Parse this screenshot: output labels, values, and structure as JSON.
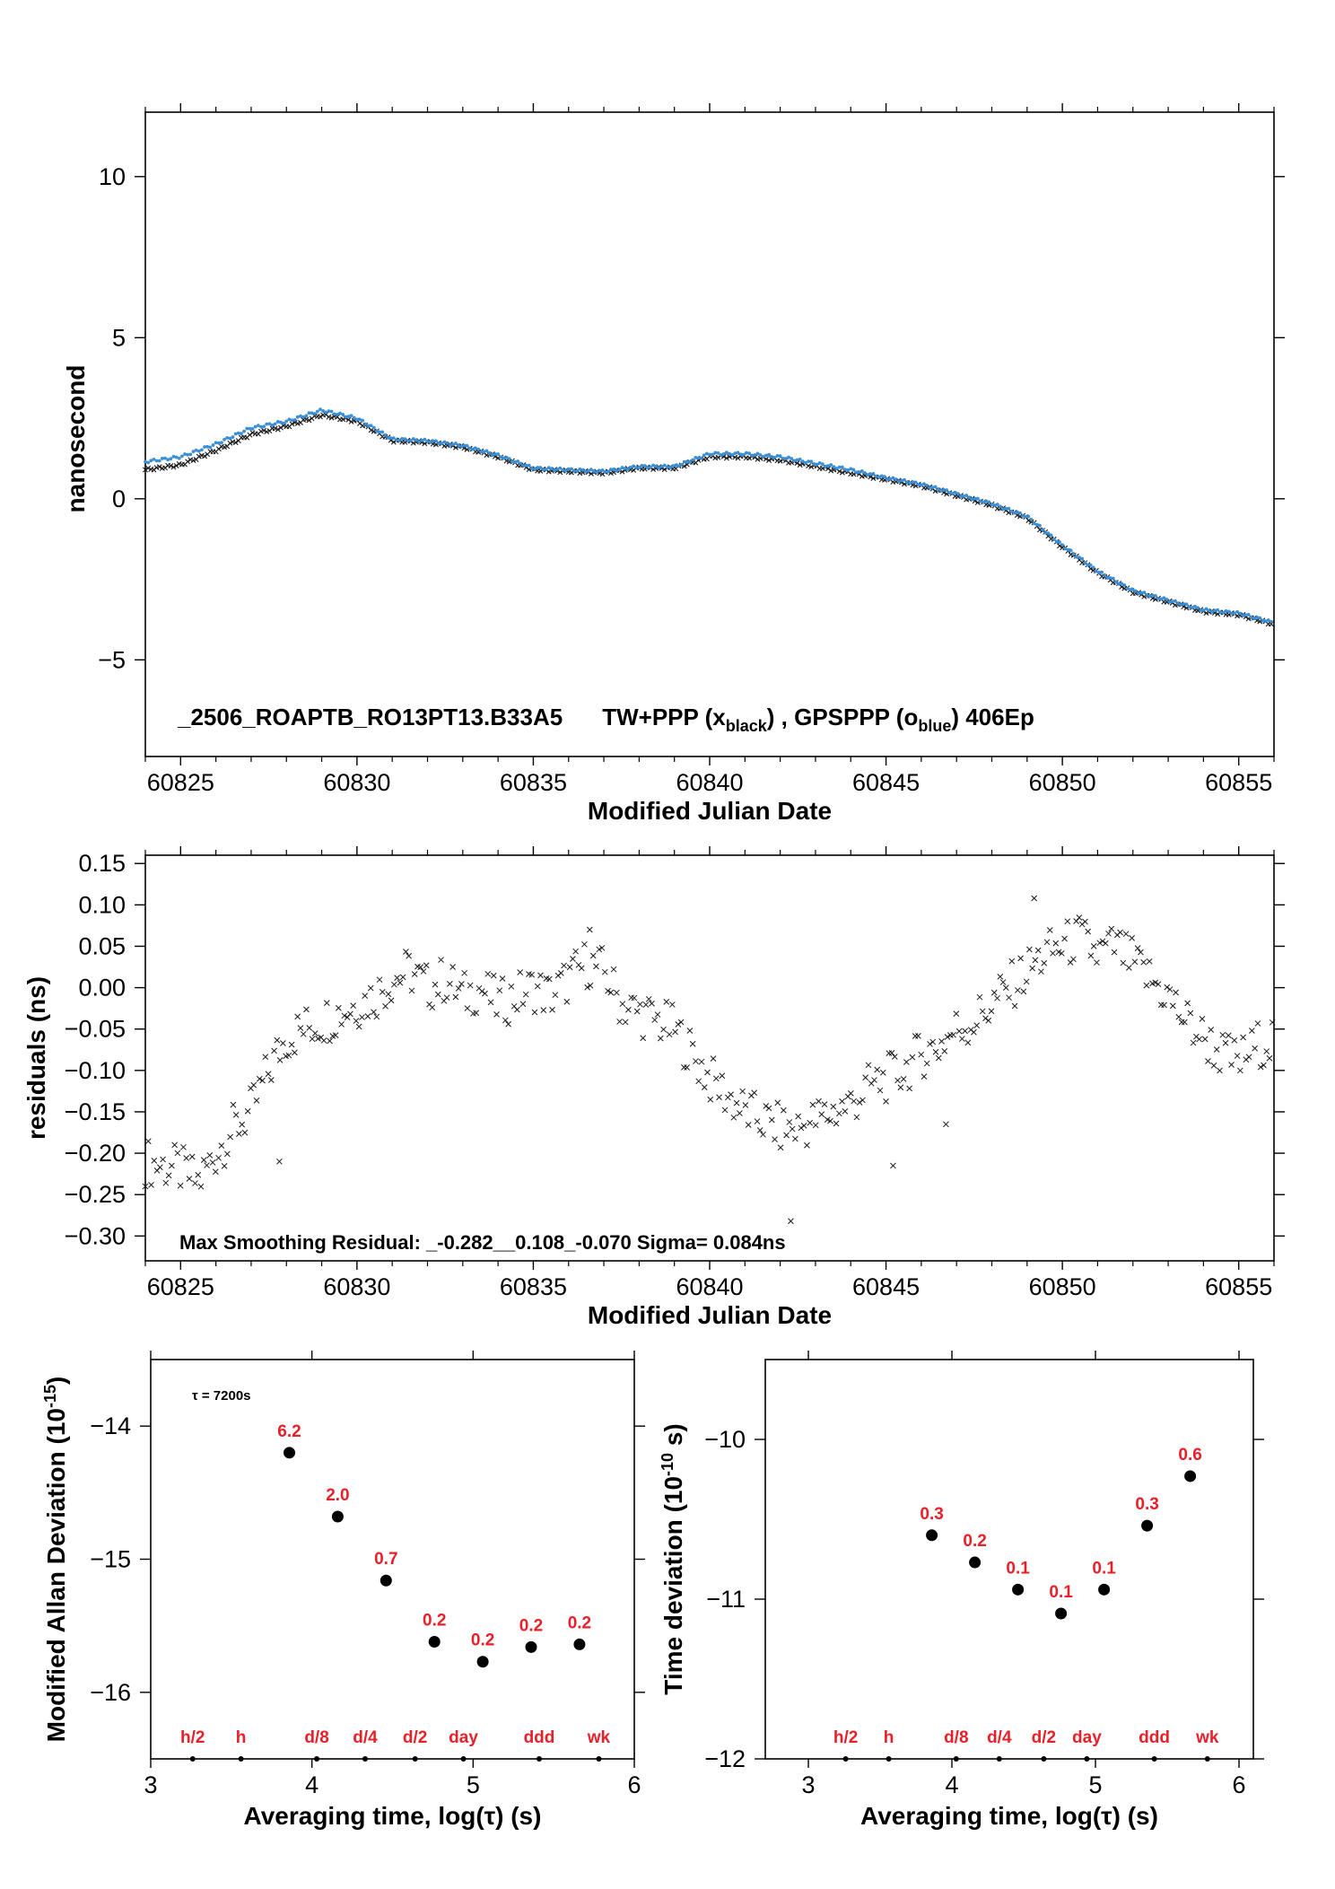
{
  "colors": {
    "black_series": "#1a1a1a",
    "blue_series": "#3a8fd6",
    "label_red": "#e8202a"
  },
  "chart_data": [
    {
      "type": "scatter",
      "ylabel": "nanosecond",
      "xlabel": "Modified Julian Date",
      "xlim": [
        60824,
        60856
      ],
      "ylim": [
        -8,
        12
      ],
      "xticks": [
        60825,
        60830,
        60835,
        60840,
        60845,
        60850,
        60855
      ],
      "yticks": [
        -5,
        0,
        5,
        10
      ],
      "ytick_labels": [
        "−5",
        "0",
        "5",
        "10"
      ],
      "note_parts": [
        "_2506_ROAPTB_RO13PT13.B33A5",
        "TW+PPP (x",
        "black",
        ") ,  GPSPPP (o",
        "blue",
        ")  406Ep"
      ],
      "series": [
        {
          "name": "TW+PPP (x black)",
          "marker": "x",
          "color": "#1a1a1a",
          "points": [
            [
              60824,
              0.9
            ],
            [
              60825,
              1.05
            ],
            [
              60826,
              1.5
            ],
            [
              60827,
              2.0
            ],
            [
              60828,
              2.25
            ],
            [
              60829,
              2.6
            ],
            [
              60830,
              2.4
            ],
            [
              60831,
              1.8
            ],
            [
              60832,
              1.75
            ],
            [
              60833,
              1.6
            ],
            [
              60834,
              1.3
            ],
            [
              60835,
              0.9
            ],
            [
              60836,
              0.85
            ],
            [
              60837,
              0.8
            ],
            [
              60838,
              0.95
            ],
            [
              60839,
              0.95
            ],
            [
              60840,
              1.3
            ],
            [
              60841,
              1.3
            ],
            [
              60842,
              1.2
            ],
            [
              60843,
              1.0
            ],
            [
              60844,
              0.8
            ],
            [
              60845,
              0.6
            ],
            [
              60846,
              0.4
            ],
            [
              60847,
              0.1
            ],
            [
              60848,
              -0.2
            ],
            [
              60849,
              -0.6
            ],
            [
              60850,
              -1.5
            ],
            [
              60851,
              -2.3
            ],
            [
              60852,
              -2.9
            ],
            [
              60853,
              -3.2
            ],
            [
              60854,
              -3.5
            ],
            [
              60855,
              -3.6
            ],
            [
              60856,
              -3.9
            ]
          ]
        },
        {
          "name": "GPSPPP (o blue)",
          "marker": "o",
          "color": "#3a8fd6",
          "points": [
            [
              60824,
              1.15
            ],
            [
              60825,
              1.3
            ],
            [
              60826,
              1.7
            ],
            [
              60827,
              2.2
            ],
            [
              60828,
              2.4
            ],
            [
              60829,
              2.75
            ],
            [
              60830,
              2.5
            ],
            [
              60831,
              1.85
            ],
            [
              60832,
              1.8
            ],
            [
              60833,
              1.65
            ],
            [
              60834,
              1.35
            ],
            [
              60835,
              0.95
            ],
            [
              60836,
              0.9
            ],
            [
              60837,
              0.85
            ],
            [
              60838,
              1.0
            ],
            [
              60839,
              1.0
            ],
            [
              60840,
              1.4
            ],
            [
              60841,
              1.4
            ],
            [
              60842,
              1.3
            ],
            [
              60843,
              1.1
            ],
            [
              60844,
              0.9
            ],
            [
              60845,
              0.65
            ],
            [
              60846,
              0.45
            ],
            [
              60847,
              0.15
            ],
            [
              60848,
              -0.15
            ],
            [
              60849,
              -0.55
            ],
            [
              60850,
              -1.45
            ],
            [
              60851,
              -2.25
            ],
            [
              60852,
              -2.85
            ],
            [
              60853,
              -3.15
            ],
            [
              60854,
              -3.45
            ],
            [
              60855,
              -3.55
            ],
            [
              60856,
              -3.85
            ]
          ]
        }
      ]
    },
    {
      "type": "scatter",
      "ylabel": "residuals (ns)",
      "xlabel": "Modified Julian Date",
      "xlim": [
        60824,
        60856
      ],
      "ylim": [
        -0.33,
        0.16
      ],
      "xticks": [
        60825,
        60830,
        60835,
        60840,
        60845,
        60850,
        60855
      ],
      "yticks": [
        -0.3,
        -0.25,
        -0.2,
        -0.15,
        -0.1,
        -0.05,
        0.0,
        0.05,
        0.1,
        0.15
      ],
      "ytick_labels": [
        "−0.30",
        "−0.25",
        "−0.20",
        "−0.15",
        "−0.10",
        "−0.05",
        "0.00",
        "0.05",
        "0.10",
        "0.15"
      ],
      "note": "Max Smoothing Residual: _-0.282__0.108_-0.070  Sigma= 0.084ns",
      "series": [
        {
          "name": "",
          "marker": "x",
          "color": "#1a1a1a",
          "points": [
            [
              60824.0,
              -0.21
            ],
            [
              60824.5,
              -0.215
            ],
            [
              60825.0,
              -0.22
            ],
            [
              60825.5,
              -0.235
            ],
            [
              60826.0,
              -0.2
            ],
            [
              60826.5,
              -0.17
            ],
            [
              60827.0,
              -0.15
            ],
            [
              60827.5,
              -0.1
            ],
            [
              60828.0,
              -0.06
            ],
            [
              60828.5,
              -0.05
            ],
            [
              60829.0,
              -0.04
            ],
            [
              60829.5,
              -0.03
            ],
            [
              60830.0,
              -0.02
            ],
            [
              60830.5,
              -0.01
            ],
            [
              60831.0,
              0.01
            ],
            [
              60831.5,
              0.02
            ],
            [
              60832.0,
              0.0
            ],
            [
              60832.5,
              0.01
            ],
            [
              60833.0,
              -0.01
            ],
            [
              60833.5,
              0.0
            ],
            [
              60834.0,
              -0.02
            ],
            [
              60834.5,
              -0.01
            ],
            [
              60835.0,
              0.0
            ],
            [
              60835.5,
              -0.01
            ],
            [
              60836.0,
              0.01
            ],
            [
              60836.5,
              0.03
            ],
            [
              60837.0,
              0.02
            ],
            [
              60837.5,
              -0.02
            ],
            [
              60838.0,
              -0.03
            ],
            [
              60838.5,
              -0.04
            ],
            [
              60839.0,
              -0.05
            ],
            [
              60839.5,
              -0.08
            ],
            [
              60840.0,
              -0.11
            ],
            [
              60840.5,
              -0.13
            ],
            [
              60841.0,
              -0.15
            ],
            [
              60841.5,
              -0.16
            ],
            [
              60842.0,
              -0.17
            ],
            [
              60842.5,
              -0.17
            ],
            [
              60843.0,
              -0.16
            ],
            [
              60843.5,
              -0.15
            ],
            [
              60844.0,
              -0.14
            ],
            [
              60844.5,
              -0.12
            ],
            [
              60845.0,
              -0.11
            ],
            [
              60845.5,
              -0.1
            ],
            [
              60846.0,
              -0.08
            ],
            [
              60846.5,
              -0.07
            ],
            [
              60847.0,
              -0.05
            ],
            [
              60847.5,
              -0.04
            ],
            [
              60848.0,
              -0.02
            ],
            [
              60848.5,
              0.0
            ],
            [
              60849.0,
              0.02
            ],
            [
              60849.5,
              0.04
            ],
            [
              60850.0,
              0.05
            ],
            [
              60850.5,
              0.06
            ],
            [
              60851.0,
              0.04
            ],
            [
              60851.5,
              0.05
            ],
            [
              60852.0,
              0.03
            ],
            [
              60852.5,
              0.01
            ],
            [
              60853.0,
              -0.01
            ],
            [
              60853.5,
              -0.04
            ],
            [
              60854.0,
              -0.06
            ],
            [
              60854.5,
              -0.08
            ],
            [
              60855.0,
              -0.09
            ],
            [
              60855.5,
              -0.07
            ],
            [
              60856.0,
              -0.06
            ],
            [
              60842.3,
              -0.282
            ],
            [
              60849.2,
              0.108
            ],
            [
              60827.8,
              -0.21
            ],
            [
              60845.2,
              -0.215
            ],
            [
              60846.7,
              -0.165
            ],
            [
              60836.6,
              0.07
            ]
          ]
        }
      ]
    },
    {
      "type": "scatter",
      "ylabel": "Modified Allan Deviation (10^-15)",
      "ylabel_base": "Modified Allan Deviation (10",
      "ylabel_exp": "-15",
      "ylabel_end": ")",
      "xlabel": "Averaging time, log(τ) (s)",
      "xlim": [
        3,
        6
      ],
      "ylim": [
        -16.5,
        -13.5
      ],
      "xticks": [
        3,
        4,
        5,
        6
      ],
      "yticks": [
        -16,
        -15,
        -14
      ],
      "ytick_labels": [
        "−16",
        "−15",
        "−14"
      ],
      "note": "τ = 7200s",
      "x": [
        3.86,
        4.16,
        4.46,
        4.76,
        5.06,
        5.36,
        5.66
      ],
      "y": [
        -14.2,
        -14.68,
        -15.16,
        -15.62,
        -15.77,
        -15.66,
        -15.64
      ],
      "point_labels": [
        "6.2",
        "2.0",
        "0.7",
        "0.2",
        "0.2",
        "0.2",
        "0.2"
      ],
      "interval_marks": [
        {
          "x": 3.26,
          "label": "h/2"
        },
        {
          "x": 3.56,
          "label": "h"
        },
        {
          "x": 4.03,
          "label": "d/8"
        },
        {
          "x": 4.33,
          "label": "d/4"
        },
        {
          "x": 4.64,
          "label": "d/2"
        },
        {
          "x": 4.94,
          "label": "day"
        },
        {
          "x": 5.41,
          "label": "ddd"
        },
        {
          "x": 5.78,
          "label": "wk"
        }
      ]
    },
    {
      "type": "scatter",
      "ylabel": "Time deviation (10^-10 s)",
      "ylabel_base": "Time deviation (10",
      "ylabel_exp": "-10",
      "ylabel_end": " s)",
      "xlabel": "Averaging time, log(τ) (s)",
      "xlim": [
        2.7,
        6.1
      ],
      "ylim": [
        -12,
        -9.5
      ],
      "xticks": [
        3,
        4,
        5,
        6
      ],
      "yticks": [
        -12,
        -11,
        -10
      ],
      "ytick_labels": [
        "−12",
        "−11",
        "−10"
      ],
      "x": [
        3.86,
        4.16,
        4.46,
        4.76,
        5.06,
        5.36,
        5.66
      ],
      "y": [
        -10.6,
        -10.77,
        -10.94,
        -11.09,
        -10.94,
        -10.54,
        -10.23
      ],
      "point_labels": [
        "0.3",
        "0.2",
        "0.1",
        "0.1",
        "0.1",
        "0.3",
        "0.6"
      ],
      "interval_marks": [
        {
          "x": 3.26,
          "label": "h/2"
        },
        {
          "x": 3.56,
          "label": "h"
        },
        {
          "x": 4.03,
          "label": "d/8"
        },
        {
          "x": 4.33,
          "label": "d/4"
        },
        {
          "x": 4.64,
          "label": "d/2"
        },
        {
          "x": 4.94,
          "label": "day"
        },
        {
          "x": 5.41,
          "label": "ddd"
        },
        {
          "x": 5.78,
          "label": "wk"
        }
      ]
    }
  ]
}
